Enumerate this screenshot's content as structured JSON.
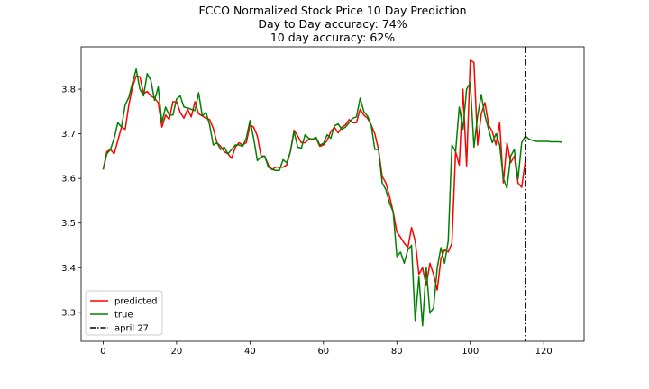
{
  "chart_data": {
    "type": "line",
    "title": [
      "FCCO Normalized Stock Price 10 Day Prediction",
      "Day to Day accuracy: 74%",
      "10 day accuracy: 62%"
    ],
    "xlabel": "",
    "ylabel": "",
    "xlim": [
      -6,
      131
    ],
    "ylim": [
      3.235,
      3.895
    ],
    "xticks": [
      0,
      20,
      40,
      60,
      80,
      100,
      120
    ],
    "yticks": [
      3.3,
      3.4,
      3.5,
      3.6,
      3.7,
      3.8
    ],
    "ytick_labels": [
      "3.3",
      "3.4",
      "3.5",
      "3.6",
      "3.7",
      "3.8"
    ],
    "grid": false,
    "legend_position": "lower-left",
    "series": [
      {
        "name": "predicted",
        "color": "#ff0000",
        "x": [
          0,
          1,
          2,
          3,
          4,
          5,
          6,
          7,
          8,
          9,
          10,
          11,
          12,
          13,
          14,
          15,
          16,
          17,
          18,
          19,
          20,
          21,
          22,
          23,
          24,
          25,
          26,
          27,
          28,
          29,
          30,
          31,
          32,
          33,
          34,
          35,
          36,
          37,
          38,
          39,
          40,
          41,
          42,
          43,
          44,
          45,
          46,
          47,
          48,
          49,
          50,
          51,
          52,
          53,
          54,
          55,
          56,
          57,
          58,
          59,
          60,
          61,
          62,
          63,
          64,
          65,
          66,
          67,
          68,
          69,
          70,
          71,
          72,
          73,
          74,
          75,
          76,
          77,
          78,
          79,
          80,
          81,
          82,
          83,
          84,
          85,
          86,
          87,
          88,
          89,
          90,
          91,
          92,
          93,
          94,
          95,
          96,
          97,
          98,
          99,
          100,
          101,
          102,
          103,
          104,
          105,
          106,
          107,
          108,
          109,
          110,
          111,
          112,
          113,
          114,
          115
        ],
        "y": [
          3.62,
          3.66,
          3.665,
          3.655,
          3.685,
          3.715,
          3.71,
          3.765,
          3.805,
          3.83,
          3.828,
          3.79,
          3.795,
          3.785,
          3.78,
          3.77,
          3.715,
          3.742,
          3.732,
          3.772,
          3.772,
          3.748,
          3.735,
          3.755,
          3.738,
          3.772,
          3.745,
          3.74,
          3.735,
          3.732,
          3.712,
          3.68,
          3.672,
          3.66,
          3.655,
          3.645,
          3.67,
          3.68,
          3.675,
          3.68,
          3.72,
          3.715,
          3.695,
          3.65,
          3.65,
          3.63,
          3.62,
          3.625,
          3.625,
          3.625,
          3.63,
          3.66,
          3.708,
          3.695,
          3.68,
          3.68,
          3.688,
          3.688,
          3.69,
          3.672,
          3.675,
          3.685,
          3.705,
          3.715,
          3.702,
          3.715,
          3.72,
          3.732,
          3.725,
          3.725,
          3.755,
          3.742,
          3.735,
          3.72,
          3.7,
          3.665,
          3.605,
          3.59,
          3.56,
          3.525,
          3.48,
          3.468,
          3.455,
          3.445,
          3.49,
          3.46,
          3.385,
          3.4,
          3.36,
          3.41,
          3.385,
          3.35,
          3.42,
          3.44,
          3.435,
          3.455,
          3.66,
          3.63,
          3.8,
          3.628,
          3.865,
          3.86,
          3.675,
          3.745,
          3.77,
          3.72,
          3.705,
          3.675,
          3.725,
          3.59,
          3.68,
          3.635,
          3.65,
          3.59,
          3.58,
          3.64
        ]
      },
      {
        "name": "true",
        "color": "#008000",
        "x": [
          0,
          1,
          2,
          3,
          4,
          5,
          6,
          7,
          8,
          9,
          10,
          11,
          12,
          13,
          14,
          15,
          16,
          17,
          18,
          19,
          20,
          21,
          22,
          23,
          24,
          25,
          26,
          27,
          28,
          29,
          30,
          31,
          32,
          33,
          34,
          35,
          36,
          37,
          38,
          39,
          40,
          41,
          42,
          43,
          44,
          45,
          46,
          47,
          48,
          49,
          50,
          51,
          52,
          53,
          54,
          55,
          56,
          57,
          58,
          59,
          60,
          61,
          62,
          63,
          64,
          65,
          66,
          67,
          68,
          69,
          70,
          71,
          72,
          73,
          74,
          75,
          76,
          77,
          78,
          79,
          80,
          81,
          82,
          83,
          84,
          85,
          86,
          87,
          88,
          89,
          90,
          91,
          92,
          93,
          94,
          95,
          96,
          97,
          98,
          99,
          100,
          101,
          102,
          103,
          104,
          105,
          106,
          107,
          108,
          109,
          110,
          111,
          112,
          113,
          114,
          115
        ],
        "y": [
          3.62,
          3.655,
          3.665,
          3.69,
          3.725,
          3.715,
          3.765,
          3.782,
          3.815,
          3.845,
          3.8,
          3.785,
          3.835,
          3.82,
          3.775,
          3.805,
          3.725,
          3.76,
          3.742,
          3.742,
          3.778,
          3.785,
          3.76,
          3.758,
          3.755,
          3.752,
          3.792,
          3.74,
          3.748,
          3.72,
          3.675,
          3.68,
          3.665,
          3.67,
          3.655,
          3.665,
          3.675,
          3.675,
          3.672,
          3.69,
          3.73,
          3.69,
          3.64,
          3.648,
          3.65,
          3.625,
          3.62,
          3.618,
          3.618,
          3.642,
          3.635,
          3.66,
          3.705,
          3.67,
          3.668,
          3.698,
          3.69,
          3.688,
          3.692,
          3.675,
          3.678,
          3.698,
          3.69,
          3.718,
          3.722,
          3.71,
          3.715,
          3.725,
          3.735,
          3.738,
          3.78,
          3.75,
          3.74,
          3.72,
          3.665,
          3.665,
          3.59,
          3.575,
          3.545,
          3.525,
          3.425,
          3.435,
          3.41,
          3.44,
          3.45,
          3.28,
          3.38,
          3.27,
          3.4,
          3.298,
          3.31,
          3.4,
          3.445,
          3.41,
          3.46,
          3.675,
          3.66,
          3.76,
          3.71,
          3.8,
          3.815,
          3.67,
          3.74,
          3.788,
          3.74,
          3.71,
          3.68,
          3.7,
          3.675,
          3.6,
          3.578,
          3.65,
          3.665,
          3.598,
          3.68,
          3.695
        ]
      },
      {
        "name": "true-forecast",
        "color": "#008000",
        "x": [
          115,
          116,
          117,
          118,
          119,
          120,
          121,
          122,
          123,
          124,
          125
        ],
        "y": [
          3.695,
          3.688,
          3.685,
          3.683,
          3.683,
          3.683,
          3.683,
          3.682,
          3.682,
          3.682,
          3.681
        ]
      }
    ],
    "vline": {
      "name": "april 27",
      "x": 115,
      "color": "#000000",
      "style": "dash-dot"
    },
    "legend": [
      {
        "label": "predicted",
        "color": "#ff0000",
        "style": "solid"
      },
      {
        "label": "true",
        "color": "#008000",
        "style": "solid"
      },
      {
        "label": "april 27",
        "color": "#000000",
        "style": "dash-dot"
      }
    ]
  }
}
